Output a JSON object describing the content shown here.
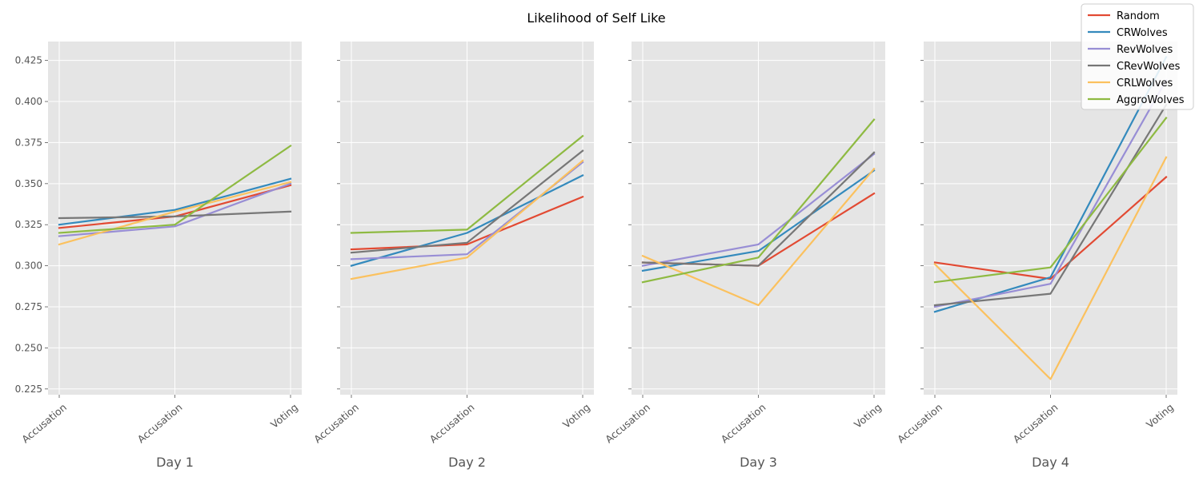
{
  "chart_data": {
    "type": "line",
    "title": "Likelihood of Self Like",
    "x_tick_labels": [
      "Accusation",
      "Accusation",
      "Voting"
    ],
    "y_ticks": [
      "0.225",
      "0.250",
      "0.275",
      "0.300",
      "0.325",
      "0.350",
      "0.375",
      "0.400",
      "0.425"
    ],
    "ylim": [
      0.2215,
      0.4365
    ],
    "grid": true,
    "legend_position": "top-right",
    "colors": {
      "background": "#e5e5e5",
      "grid": "#ffffff",
      "Random": "#e24a33",
      "CRWolves": "#348abd",
      "RevWolves": "#988ed5",
      "CRevWolves": "#777777",
      "CRLWolves": "#fbc15e",
      "AggroWolves": "#8eba42"
    },
    "panels": [
      {
        "xlabel": "Day 1",
        "series": [
          {
            "name": "Random",
            "values": [
              0.323,
              0.33,
              0.349
            ]
          },
          {
            "name": "CRWolves",
            "values": [
              0.325,
              0.334,
              0.353
            ]
          },
          {
            "name": "RevWolves",
            "values": [
              0.318,
              0.324,
              0.35
            ]
          },
          {
            "name": "CRevWolves",
            "values": [
              0.329,
              0.33,
              0.333
            ]
          },
          {
            "name": "CRLWolves",
            "values": [
              0.313,
              0.333,
              0.351
            ]
          },
          {
            "name": "AggroWolves",
            "values": [
              0.32,
              0.325,
              0.373
            ]
          }
        ]
      },
      {
        "xlabel": "Day 2",
        "series": [
          {
            "name": "Random",
            "values": [
              0.31,
              0.313,
              0.342
            ]
          },
          {
            "name": "CRWolves",
            "values": [
              0.3,
              0.32,
              0.355
            ]
          },
          {
            "name": "RevWolves",
            "values": [
              0.304,
              0.307,
              0.363
            ]
          },
          {
            "name": "CRevWolves",
            "values": [
              0.308,
              0.314,
              0.37
            ]
          },
          {
            "name": "CRLWolves",
            "values": [
              0.292,
              0.305,
              0.364
            ]
          },
          {
            "name": "AggroWolves",
            "values": [
              0.32,
              0.322,
              0.379
            ]
          }
        ]
      },
      {
        "xlabel": "Day 3",
        "series": [
          {
            "name": "Random",
            "values": [
              0.302,
              0.3,
              0.344
            ]
          },
          {
            "name": "CRWolves",
            "values": [
              0.297,
              0.309,
              0.358
            ]
          },
          {
            "name": "RevWolves",
            "values": [
              0.3,
              0.313,
              0.368
            ]
          },
          {
            "name": "CRevWolves",
            "values": [
              0.302,
              0.3,
              0.369
            ]
          },
          {
            "name": "CRLWolves",
            "values": [
              0.306,
              0.276,
              0.359
            ]
          },
          {
            "name": "AggroWolves",
            "values": [
              0.29,
              0.305,
              0.389
            ]
          }
        ]
      },
      {
        "xlabel": "Day 4",
        "series": [
          {
            "name": "Random",
            "values": [
              0.302,
              0.292,
              0.354
            ]
          },
          {
            "name": "CRWolves",
            "values": [
              0.272,
              0.293,
              0.427
            ]
          },
          {
            "name": "RevWolves",
            "values": [
              0.275,
              0.289,
              0.413
            ]
          },
          {
            "name": "CRevWolves",
            "values": [
              0.276,
              0.283,
              0.398
            ]
          },
          {
            "name": "CRLWolves",
            "values": [
              0.301,
              0.231,
              0.366
            ]
          },
          {
            "name": "AggroWolves",
            "values": [
              0.29,
              0.299,
              0.39
            ]
          }
        ]
      }
    ],
    "legend": [
      "Random",
      "CRWolves",
      "RevWolves",
      "CRevWolves",
      "CRLWolves",
      "AggroWolves"
    ]
  }
}
